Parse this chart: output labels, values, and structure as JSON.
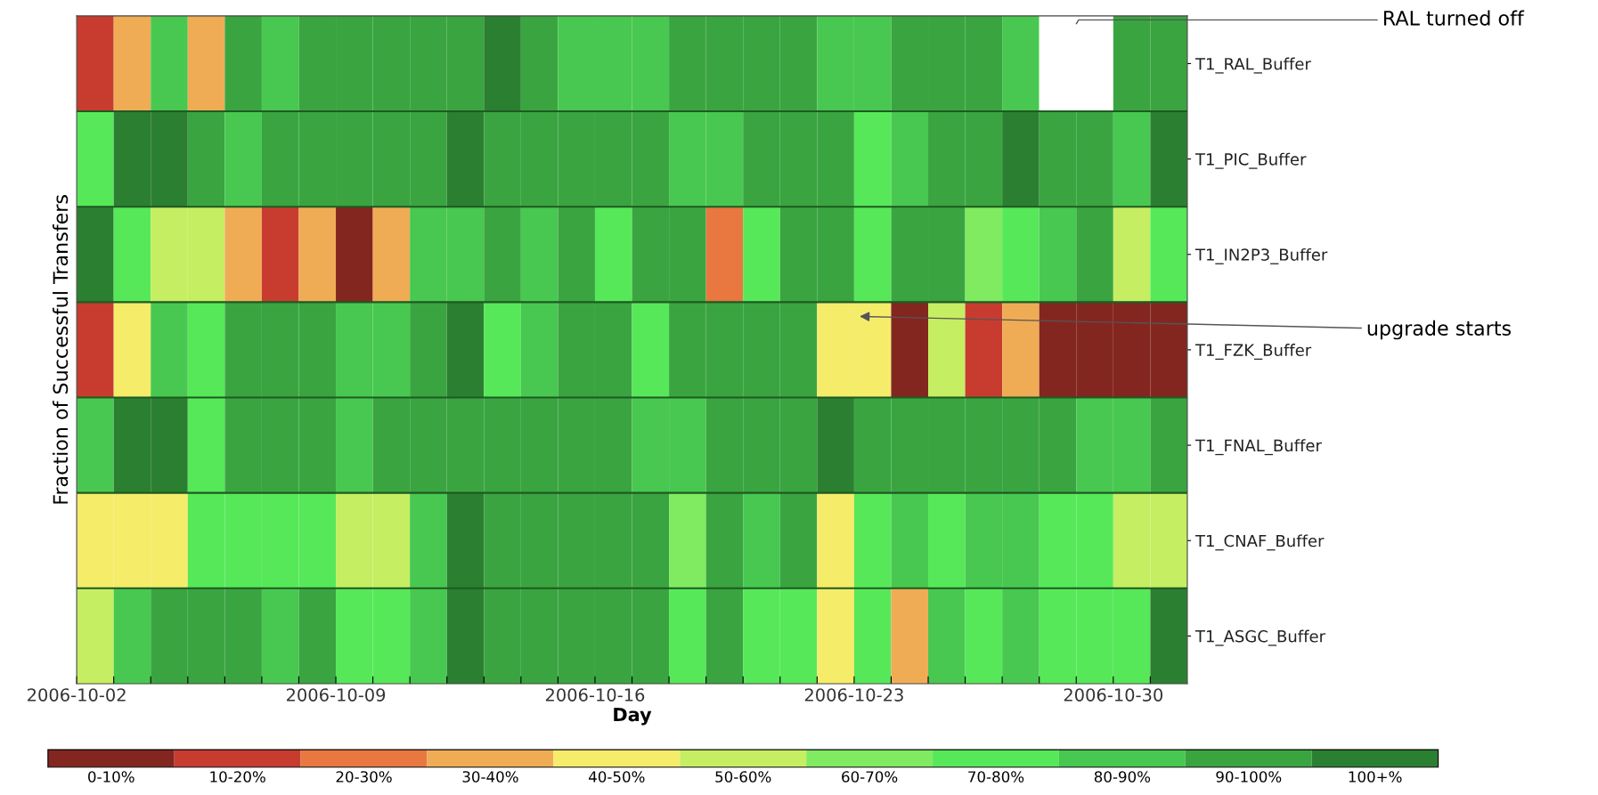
{
  "chart_data": {
    "type": "heatmap",
    "xlabel": "Day",
    "ylabel": "Fraction of Successful Transfers",
    "x": [
      "2006-10-02T12:00",
      "2006-10-03T12:00",
      "2006-10-04T12:00",
      "2006-10-05T12:00",
      "2006-10-06T12:00",
      "2006-10-07T12:00",
      "2006-10-08T12:00",
      "2006-10-09T12:00",
      "2006-10-10T12:00",
      "2006-10-11T12:00",
      "2006-10-12T12:00",
      "2006-10-13T12:00",
      "2006-10-14T12:00",
      "2006-10-15T12:00",
      "2006-10-16T12:00",
      "2006-10-17T12:00",
      "2006-10-18T12:00",
      "2006-10-19T12:00",
      "2006-10-20T12:00",
      "2006-10-21T12:00",
      "2006-10-22T12:00",
      "2006-10-23T12:00",
      "2006-10-24T12:00",
      "2006-10-25T12:00",
      "2006-10-26T12:00",
      "2006-10-27T12:00",
      "2006-10-28T12:00",
      "2006-10-29T12:00",
      "2006-10-30T12:00",
      "2006-10-31T12:00"
    ],
    "xlim": [
      "2006-10-02",
      "2006-11-01"
    ],
    "xticks": [
      {
        "value": "2006-10-02",
        "label": "2006-10-02"
      },
      {
        "value": "2006-10-03",
        "label": null
      },
      {
        "value": "2006-10-04",
        "label": null
      },
      {
        "value": "2006-10-05",
        "label": null
      },
      {
        "value": "2006-10-06",
        "label": null
      },
      {
        "value": "2006-10-07",
        "label": null
      },
      {
        "value": "2006-10-08",
        "label": null
      },
      {
        "value": "2006-10-09",
        "label": "2006-10-09"
      },
      {
        "value": "2006-10-10",
        "label": null
      },
      {
        "value": "2006-10-11",
        "label": null
      },
      {
        "value": "2006-10-12",
        "label": null
      },
      {
        "value": "2006-10-13",
        "label": null
      },
      {
        "value": "2006-10-14",
        "label": null
      },
      {
        "value": "2006-10-15",
        "label": null
      },
      {
        "value": "2006-10-16",
        "label": "2006-10-16"
      },
      {
        "value": "2006-10-17",
        "label": null
      },
      {
        "value": "2006-10-18",
        "label": null
      },
      {
        "value": "2006-10-19",
        "label": null
      },
      {
        "value": "2006-10-20",
        "label": null
      },
      {
        "value": "2006-10-21",
        "label": null
      },
      {
        "value": "2006-10-22",
        "label": null
      },
      {
        "value": "2006-10-23",
        "label": "2006-10-23"
      },
      {
        "value": "2006-10-24",
        "label": null
      },
      {
        "value": "2006-10-25",
        "label": null
      },
      {
        "value": "2006-10-26",
        "label": null
      },
      {
        "value": "2006-10-27",
        "label": null
      },
      {
        "value": "2006-10-28",
        "label": null
      },
      {
        "value": "2006-10-29",
        "label": null
      },
      {
        "value": "2006-10-30",
        "label": "2006-10-30"
      },
      {
        "value": "2006-10-31",
        "label": null
      }
    ],
    "y_categories": [
      "T1_RAL_Buffer",
      "T1_PIC_Buffer",
      "T1_IN2P3_Buffer",
      "T1_FZK_Buffer",
      "T1_FNAL_Buffer",
      "T1_CNAF_Buffer",
      "T1_ASGC_Buffer"
    ],
    "cells": [
      [
        15,
        35,
        85,
        35,
        95,
        85,
        95,
        95,
        95,
        95,
        95,
        105,
        95,
        85,
        85,
        85,
        95,
        95,
        95,
        95,
        85,
        85,
        95,
        95,
        95,
        85,
        null,
        null,
        95,
        95
      ],
      [
        75,
        105,
        105,
        95,
        85,
        95,
        95,
        95,
        95,
        95,
        105,
        95,
        95,
        95,
        95,
        95,
        85,
        85,
        95,
        95,
        95,
        75,
        85,
        95,
        95,
        105,
        95,
        95,
        85,
        105
      ],
      [
        105,
        75,
        55,
        55,
        35,
        15,
        35,
        5,
        35,
        85,
        85,
        95,
        85,
        95,
        75,
        95,
        95,
        25,
        75,
        95,
        95,
        75,
        95,
        95,
        65,
        75,
        85,
        95,
        55,
        75
      ],
      [
        15,
        45,
        85,
        75,
        95,
        95,
        95,
        85,
        85,
        95,
        105,
        75,
        85,
        95,
        95,
        75,
        95,
        95,
        95,
        95,
        45,
        45,
        5,
        55,
        15,
        35,
        5,
        5,
        5,
        5
      ],
      [
        85,
        105,
        105,
        75,
        95,
        95,
        95,
        85,
        95,
        95,
        95,
        95,
        95,
        95,
        95,
        85,
        85,
        95,
        95,
        95,
        105,
        95,
        95,
        95,
        95,
        95,
        95,
        85,
        85,
        95
      ],
      [
        45,
        45,
        45,
        75,
        75,
        75,
        75,
        55,
        55,
        85,
        105,
        95,
        95,
        95,
        95,
        95,
        65,
        95,
        85,
        95,
        45,
        75,
        85,
        75,
        85,
        85,
        75,
        75,
        55,
        55
      ],
      [
        55,
        85,
        95,
        95,
        95,
        85,
        95,
        75,
        75,
        85,
        105,
        95,
        95,
        95,
        95,
        95,
        75,
        95,
        75,
        75,
        45,
        75,
        35,
        85,
        75,
        85,
        75,
        75,
        75,
        105
      ]
    ],
    "clim": [
      0,
      110
    ],
    "cticks": [
      {
        "value": 5,
        "label": "0-10%"
      },
      {
        "value": 15,
        "label": "10-20%"
      },
      {
        "value": 25,
        "label": "20-30%"
      },
      {
        "value": 35,
        "label": "30-40%"
      },
      {
        "value": 45,
        "label": "40-50%"
      },
      {
        "value": 55,
        "label": "50-60%"
      },
      {
        "value": 65,
        "label": "60-70%"
      },
      {
        "value": 75,
        "label": "70-80%"
      },
      {
        "value": 85,
        "label": "80-90%"
      },
      {
        "value": 95,
        "label": "90-100%"
      },
      {
        "value": 105,
        "label": "100+%"
      }
    ],
    "colors": [
      "#842620",
      "#c83c30",
      "#e8783f",
      "#f0ac55",
      "#f5ec6a",
      "#c6ee62",
      "#80ea60",
      "#57e85a",
      "#48c850",
      "#3aa540",
      "#2b7f31"
    ],
    "annotations": [
      "RAL turned off",
      "upgrade starts"
    ]
  }
}
